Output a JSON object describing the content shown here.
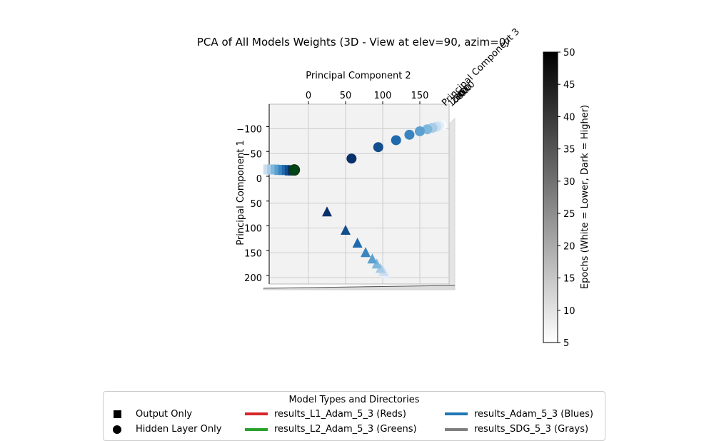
{
  "chart_data": {
    "type": "scatter",
    "title": "PCA of All Models Weights (3D - View at elev=90, azim=0)",
    "xlabel": "Principal Component 2",
    "ylabel": "Principal Component 1",
    "zlabel": "Principal Component 3",
    "view": {
      "elev": 90,
      "azim": 0
    },
    "x_ticks": [
      0,
      50,
      100,
      150
    ],
    "y_ticks": [
      -100,
      -50,
      0,
      50,
      100,
      150,
      200
    ],
    "z_tick_labels": [
      "100",
      "200",
      "300",
      "400",
      "500"
    ],
    "xlim": [
      -55,
      195
    ],
    "ylim": [
      -150,
      222
    ],
    "grid": true,
    "colorbar": {
      "label": "Epochs (White = Lower, Dark = Higher)",
      "min": 5,
      "max": 50,
      "ticks": [
        5,
        10,
        15,
        20,
        25,
        30,
        35,
        40,
        45,
        50
      ],
      "colors": [
        "#ffffff",
        "#000000"
      ]
    },
    "legend": {
      "title": "Model Types and Directories",
      "placement": "bottom-center",
      "markers": [
        {
          "label": "Output Only",
          "shape": "square"
        },
        {
          "label": "Hidden Layer Only",
          "shape": "circle"
        }
      ],
      "directories": [
        {
          "label": "results_L1_Adam_5_3 (Reds)",
          "color": "#d62728"
        },
        {
          "label": "results_L2_Adam_5_3 (Greens)",
          "color": "#2ca02c"
        },
        {
          "label": "results_Adam_5_3 (Blues)",
          "color": "#1f77b4"
        },
        {
          "label": "results_SDG_5_3 (Grays)",
          "color": "#7f7f7f"
        }
      ]
    },
    "series": [
      {
        "directory": "results_Adam_5_3",
        "marker": "circle",
        "x": [
          58,
          94,
          118,
          136,
          150,
          160,
          167,
          172,
          176,
          180
        ],
        "y": [
          -40,
          -63,
          -77,
          -88,
          -95,
          -99,
          -102,
          -104,
          -106,
          -107
        ],
        "epoch": [
          50,
          45,
          40,
          35,
          30,
          25,
          20,
          15,
          10,
          5
        ]
      },
      {
        "directory": "results_Adam_5_3",
        "marker": "triangle",
        "x": [
          25,
          50,
          66,
          77,
          86,
          92,
          97,
          101,
          104
        ],
        "y": [
          68,
          105,
          131,
          150,
          163,
          173,
          182,
          188,
          193
        ],
        "epoch": [
          50,
          45,
          40,
          35,
          30,
          25,
          20,
          15,
          10
        ],
        "note_free": true
      },
      {
        "directory": "results_Adam_5_3",
        "marker": "square",
        "x": [
          -22,
          -26,
          -30,
          -35,
          -40,
          -45,
          -50,
          -55
        ],
        "y": [
          -16,
          -16,
          -17,
          -17,
          -17,
          -18,
          -18,
          -18
        ],
        "epoch": [
          50,
          45,
          40,
          35,
          30,
          25,
          20,
          15
        ]
      },
      {
        "directory": "results_L2_Adam_5_3",
        "marker": "circle",
        "x": [
          -19
        ],
        "y": [
          -17
        ],
        "epoch": [
          50
        ]
      }
    ]
  }
}
